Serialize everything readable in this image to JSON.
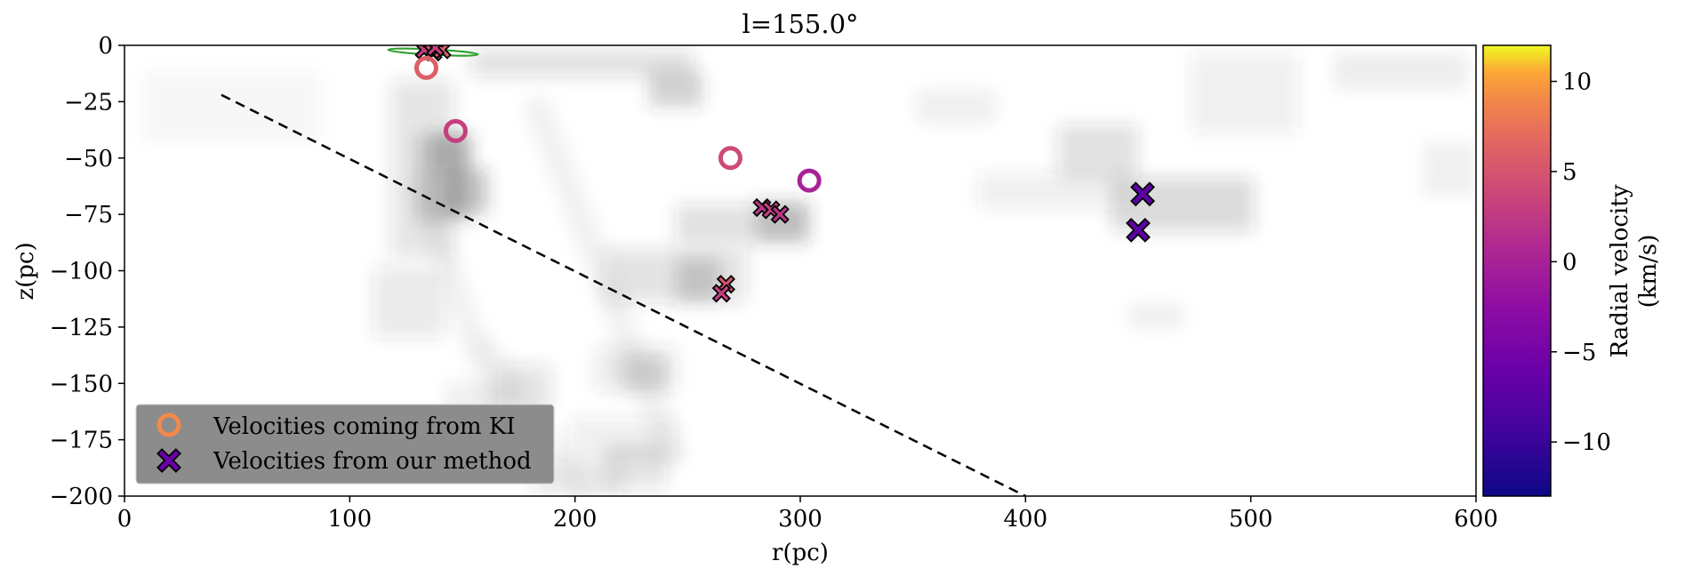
{
  "chart_data": {
    "type": "scatter",
    "title": "l=155.0°",
    "xlabel": "r(pc)",
    "ylabel": "z(pc)",
    "xlim": [
      0,
      600
    ],
    "ylim": [
      -200,
      0
    ],
    "xticks": [
      0,
      100,
      200,
      300,
      400,
      500,
      600
    ],
    "yticks": [
      0,
      -25,
      -50,
      -75,
      -100,
      -125,
      -150,
      -175,
      -200
    ],
    "background": "grayscale dust density map (white = low, dark gray = high)",
    "grid": false,
    "legend_position": "lower-left",
    "legend": [
      {
        "label": "Velocities coming from KI",
        "marker": "circle-open",
        "color": "#f4894b"
      },
      {
        "label": "Velocities from our method",
        "marker": "x-filled",
        "color": "#6a00a8"
      }
    ],
    "colorbar": {
      "label_line1": "Radial velocity",
      "label_line2": "(km/s)",
      "colormap": "plasma",
      "range": [
        -13,
        12
      ],
      "ticks": [
        10,
        5,
        0,
        -5,
        -10
      ],
      "tick_labels": [
        "10",
        "5",
        "0",
        "−5",
        "−10"
      ]
    },
    "dashed_line": {
      "x": [
        43,
        400
      ],
      "y": [
        -22,
        -200
      ],
      "color": "#000000"
    },
    "series": [
      {
        "name": "Velocities coming from KI",
        "marker": "circle-open",
        "points": [
          {
            "x": 134,
            "y": -10,
            "v": 6
          },
          {
            "x": 147,
            "y": -38,
            "v": 3
          },
          {
            "x": 269,
            "y": -50,
            "v": 4
          },
          {
            "x": 304,
            "y": -60,
            "v": 0
          }
        ]
      },
      {
        "name": "Velocities from our method",
        "marker": "x-filled",
        "points": [
          {
            "x": 133,
            "y": -2,
            "v": 3
          },
          {
            "x": 137,
            "y": -3,
            "v": 4
          },
          {
            "x": 141,
            "y": -2,
            "v": 6
          },
          {
            "x": 138,
            "y": -1,
            "v": 3
          },
          {
            "x": 283,
            "y": -72,
            "v": 2
          },
          {
            "x": 287,
            "y": -73,
            "v": 3
          },
          {
            "x": 291,
            "y": -75,
            "v": 2
          },
          {
            "x": 267,
            "y": -106,
            "v": 5
          },
          {
            "x": 265,
            "y": -110,
            "v": 3
          },
          {
            "x": 452,
            "y": -66,
            "v": -7
          },
          {
            "x": 450,
            "y": -82,
            "v": -7
          }
        ]
      }
    ],
    "green_ellipse": {
      "cx": 137,
      "cy": -3,
      "rx": 20,
      "ry": 1.2,
      "angle_deg": 3,
      "color": "#2ca02c"
    }
  }
}
